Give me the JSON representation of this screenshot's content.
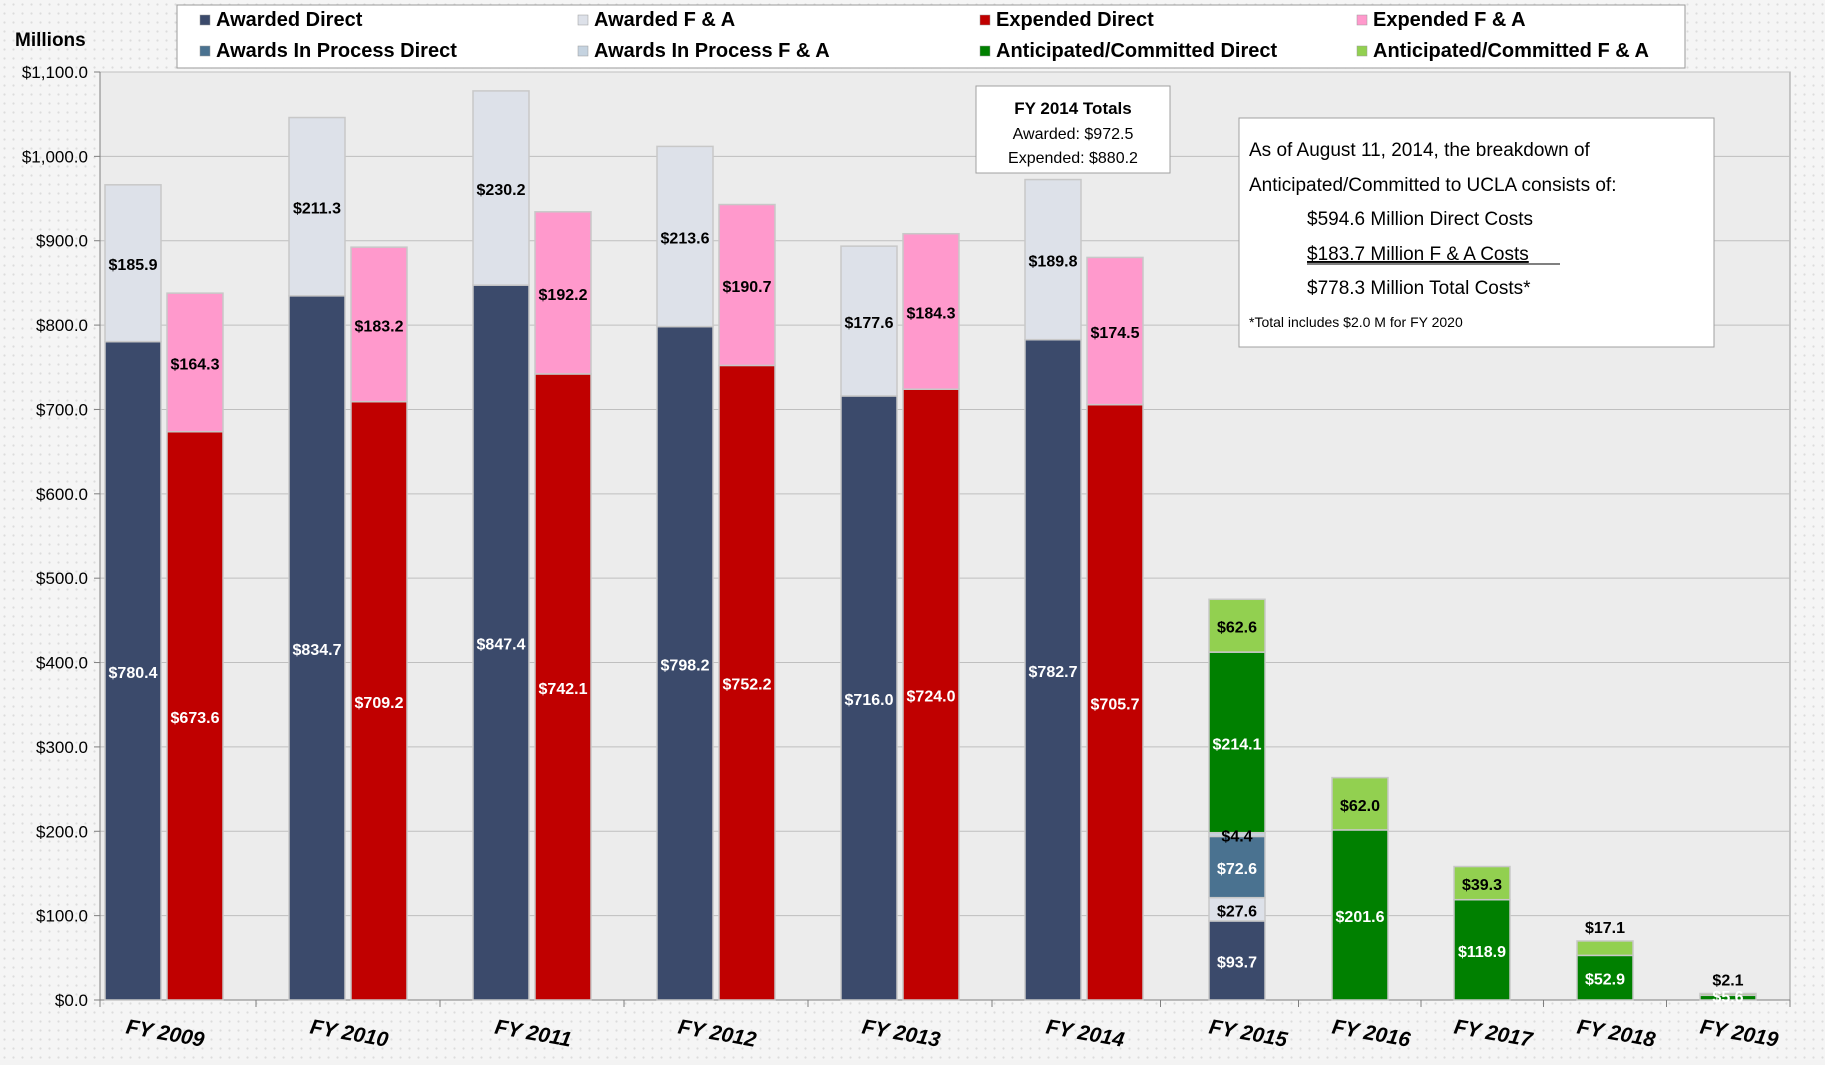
{
  "chart_data": {
    "type": "bar",
    "stacked": true,
    "ylabel": "Millions",
    "ylim": [
      0,
      1100
    ],
    "y_tick_step": 100,
    "y_tick_labels": [
      "$0.0",
      "$100.0",
      "$200.0",
      "$300.0",
      "$400.0",
      "$500.0",
      "$600.0",
      "$700.0",
      "$800.0",
      "$900.0",
      "$1,000.0",
      "$1,100.0"
    ],
    "grid": true,
    "legend_position": "top",
    "categories": [
      "FY 2009",
      "FY 2010",
      "FY 2011",
      "FY 2012",
      "FY 2013",
      "FY 2014",
      "FY 2015",
      "FY 2016",
      "FY 2017",
      "FY 2018",
      "FY 2019"
    ],
    "series": [
      {
        "name": "Awarded Direct",
        "color": "#3b4a6b",
        "stack": "awarded",
        "label_color": "#ffffff",
        "values": [
          780.4,
          834.7,
          847.4,
          798.2,
          716.0,
          782.7,
          null,
          null,
          null,
          null,
          null
        ],
        "labels": [
          "$780.4",
          "$834.7",
          "$847.4",
          "$798.2",
          "$716.0",
          "$782.7",
          "",
          "",
          "",
          "",
          ""
        ]
      },
      {
        "name": "Awarded F & A",
        "color": "#dde1e9",
        "stack": "awarded",
        "label_color": "#000000",
        "values": [
          185.9,
          211.3,
          230.2,
          213.6,
          177.6,
          189.8,
          null,
          null,
          null,
          null,
          null
        ],
        "labels": [
          "$185.9",
          "$211.3",
          "$230.2",
          "$213.6",
          "$177.6",
          "$189.8",
          "",
          "",
          "",
          "",
          ""
        ]
      },
      {
        "name": "Expended Direct",
        "color": "#c00000",
        "stack": "expended",
        "label_color": "#ffffff",
        "values": [
          673.6,
          709.2,
          742.1,
          752.2,
          724.0,
          705.7,
          null,
          null,
          null,
          null,
          null
        ],
        "labels": [
          "$673.6",
          "$709.2",
          "$742.1",
          "$752.2",
          "$724.0",
          "$705.7",
          "",
          "",
          "",
          "",
          ""
        ]
      },
      {
        "name": "Expended F & A",
        "color": "#ff99cc",
        "stack": "expended",
        "label_color": "#000000",
        "values": [
          164.3,
          183.2,
          192.2,
          190.7,
          184.3,
          174.5,
          null,
          null,
          null,
          null,
          null
        ],
        "labels": [
          "$164.3",
          "$183.2",
          "$192.2",
          "$190.7",
          "$184.3",
          "$174.5",
          "",
          "",
          "",
          "",
          ""
        ]
      },
      {
        "name": "Awards In Process Direct",
        "color": "#4a7290",
        "stack": "projected",
        "label_color": "#ffffff",
        "values": [
          null,
          null,
          null,
          null,
          null,
          null,
          72.6,
          null,
          null,
          null,
          null
        ],
        "labels": [
          "",
          "",
          "",
          "",
          "",
          "",
          "$72.6",
          "",
          "",
          "",
          ""
        ]
      },
      {
        "name": "Awards In Process F & A",
        "color": "#c5d3e0",
        "stack": "projected",
        "label_color": "#000000",
        "values": [
          null,
          null,
          null,
          null,
          null,
          null,
          4.4,
          null,
          null,
          null,
          null
        ],
        "labels": [
          "",
          "",
          "",
          "",
          "",
          "",
          "$4.4",
          "",
          "",
          "",
          ""
        ]
      },
      {
        "name": "Anticipated/Committed Direct",
        "color": "#008000",
        "stack": "projected",
        "label_color": "#ffffff",
        "values": [
          null,
          null,
          null,
          null,
          null,
          null,
          214.1,
          201.6,
          118.9,
          52.9,
          5.6
        ],
        "labels": [
          "",
          "",
          "",
          "",
          "",
          "",
          "$214.1",
          "$201.6",
          "$118.9",
          "$52.9",
          "$5.6"
        ]
      },
      {
        "name": "Anticipated/Committed F & A",
        "color": "#92d050",
        "stack": "projected",
        "label_color": "#000000",
        "values": [
          null,
          null,
          null,
          null,
          null,
          null,
          62.6,
          62.0,
          39.3,
          17.1,
          2.1
        ],
        "labels": [
          "",
          "",
          "",
          "",
          "",
          "",
          "$62.6",
          "$62.0",
          "$39.3",
          "$17.1",
          "$2.1"
        ]
      }
    ],
    "unlabeled_legend_segments": [
      {
        "category": "FY 2015",
        "stack": "projected",
        "color": "#3b4a6b",
        "label_color": "#ffffff",
        "value": 93.7,
        "label": "$93.7"
      },
      {
        "category": "FY 2015",
        "stack": "projected",
        "color": "#dde1e9",
        "label_color": "#000000",
        "value": 27.6,
        "label": "$27.6"
      }
    ],
    "annotations": {
      "fy2014_totals": {
        "title": "FY 2014 Totals",
        "awarded": "Awarded: $972.5",
        "expended": "Expended: $880.2"
      },
      "breakdown": {
        "line1": "As of August 11, 2014, the breakdown of",
        "line2": "Anticipated/Committed to UCLA consists of:",
        "direct": "$594.6 Million Direct Costs",
        "fa": "$183.7 Million F & A Costs",
        "total": "$778.3 Million Total Costs*",
        "footnote": "*Total includes $2.0 M for FY 2020"
      }
    }
  }
}
